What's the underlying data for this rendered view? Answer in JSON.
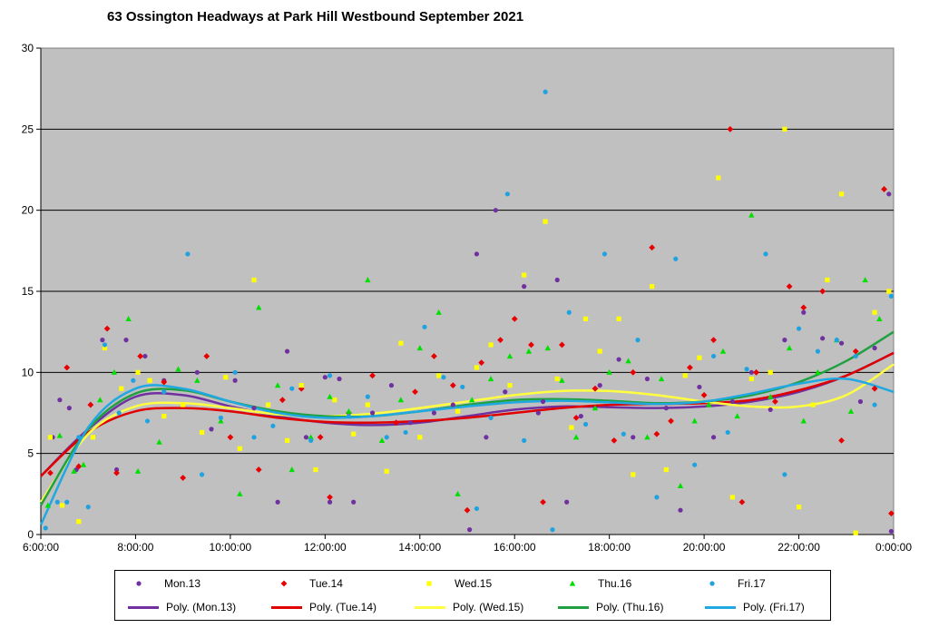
{
  "chart_data": {
    "type": "scatter",
    "title": "63 Ossington Headways at Park Hill Westbound September 2021",
    "xlabel": "",
    "ylabel": "",
    "x_ticks": [
      "6:00:00",
      "8:00:00",
      "10:00:00",
      "12:00:00",
      "14:00:00",
      "16:00:00",
      "18:00:00",
      "20:00:00",
      "22:00:00",
      "0:00:00"
    ],
    "y_ticks": [
      "0",
      "5",
      "10",
      "15",
      "20",
      "25",
      "30"
    ],
    "xlim": [
      6,
      24
    ],
    "ylim": [
      0,
      30
    ],
    "grid": "horizontal",
    "legend_position": "bottom",
    "plot_background": "#c0c0c0",
    "series": [
      {
        "name": "Mon.13",
        "color": "#7030a0",
        "marker": "circle",
        "x": [
          6.25,
          6.4,
          6.6,
          6.75,
          7.3,
          7.6,
          7.8,
          8.2,
          8.6,
          9.3,
          9.6,
          10.1,
          10.5,
          11.0,
          11.2,
          11.6,
          12.0,
          12.1,
          12.3,
          12.6,
          13.0,
          13.4,
          13.8,
          14.3,
          14.7,
          15.05,
          15.2,
          15.4,
          15.6,
          15.8,
          16.2,
          16.5,
          16.6,
          16.9,
          17.1,
          17.4,
          17.8,
          18.2,
          18.5,
          18.8,
          19.2,
          19.5,
          19.9,
          20.2,
          20.6,
          21.0,
          21.4,
          21.7,
          22.1,
          22.5,
          22.9,
          23.3,
          23.6,
          23.9,
          23.95
        ],
        "y": [
          6.0,
          8.3,
          7.8,
          4.0,
          12.0,
          4.0,
          12.0,
          11.0,
          9.5,
          10.0,
          6.5,
          9.5,
          7.8,
          2.0,
          11.3,
          6.0,
          9.7,
          2.0,
          9.6,
          2.0,
          7.5,
          9.2,
          6.9,
          7.5,
          8.0,
          0.3,
          17.3,
          6.0,
          20.0,
          8.8,
          15.3,
          7.5,
          8.2,
          15.7,
          2.0,
          7.3,
          9.2,
          10.8,
          6.0,
          9.6,
          7.8,
          1.5,
          9.1,
          6.0,
          8.2,
          10.0,
          7.7,
          12.0,
          13.7,
          12.1,
          11.8,
          8.2,
          11.5,
          21.0,
          0.2
        ]
      },
      {
        "name": "Tue.14",
        "color": "#e80000",
        "marker": "diamond",
        "x": [
          6.2,
          6.55,
          6.8,
          7.05,
          7.4,
          7.6,
          8.1,
          8.6,
          9.0,
          9.5,
          10.0,
          10.6,
          11.1,
          11.5,
          11.9,
          12.1,
          12.5,
          13.0,
          13.5,
          13.9,
          14.3,
          14.7,
          15.0,
          15.3,
          15.7,
          16.0,
          16.35,
          16.6,
          17.0,
          17.3,
          17.7,
          18.1,
          18.5,
          18.9,
          19.0,
          19.3,
          19.7,
          20.0,
          20.2,
          20.55,
          20.8,
          21.1,
          21.5,
          21.8,
          22.1,
          22.5,
          22.9,
          23.2,
          23.6,
          23.8,
          23.95
        ],
        "y": [
          3.8,
          10.3,
          4.2,
          8.0,
          12.7,
          3.8,
          11.0,
          9.4,
          3.5,
          11.0,
          6.0,
          4.0,
          8.3,
          9.0,
          6.0,
          2.3,
          7.5,
          9.8,
          6.9,
          8.8,
          11.0,
          9.2,
          1.5,
          10.6,
          12.0,
          13.3,
          11.7,
          2.0,
          11.7,
          7.2,
          9.0,
          5.8,
          10.0,
          17.7,
          6.2,
          7.0,
          10.3,
          8.6,
          12.0,
          25.0,
          2.0,
          10.0,
          8.2,
          15.3,
          14.0,
          15.0,
          5.8,
          11.3,
          9.0,
          21.3,
          1.3
        ]
      },
      {
        "name": "Wed.15",
        "color": "#ffff00",
        "marker": "square",
        "x": [
          6.2,
          6.45,
          6.8,
          7.1,
          7.35,
          7.7,
          8.05,
          8.3,
          8.6,
          9.0,
          9.4,
          9.9,
          10.2,
          10.5,
          10.8,
          11.2,
          11.5,
          11.8,
          12.2,
          12.6,
          12.9,
          13.3,
          13.6,
          14.0,
          14.4,
          14.8,
          15.2,
          15.5,
          15.9,
          16.2,
          16.65,
          16.9,
          17.2,
          17.5,
          17.8,
          18.2,
          18.5,
          18.9,
          19.2,
          19.6,
          19.9,
          20.3,
          20.6,
          21.0,
          21.4,
          21.7,
          22.0,
          22.3,
          22.6,
          22.9,
          23.2,
          23.6,
          23.9
        ],
        "y": [
          6.0,
          1.8,
          0.8,
          6.0,
          11.5,
          9.0,
          10.0,
          9.5,
          7.3,
          8.0,
          6.3,
          9.7,
          5.3,
          15.7,
          8.0,
          5.8,
          9.2,
          4.0,
          8.3,
          6.2,
          8.0,
          3.9,
          11.8,
          6.0,
          9.8,
          7.6,
          10.3,
          11.7,
          9.2,
          16.0,
          19.3,
          9.6,
          6.6,
          13.3,
          11.3,
          13.3,
          3.7,
          15.3,
          4.0,
          9.8,
          10.9,
          22.0,
          2.3,
          9.6,
          10.0,
          25.0,
          1.7,
          8.0,
          15.7,
          21.0,
          0.1,
          13.7,
          15.0
        ]
      },
      {
        "name": "Thu.16",
        "color": "#00e000",
        "marker": "triangle",
        "x": [
          6.15,
          6.4,
          6.7,
          6.9,
          7.25,
          7.55,
          7.85,
          8.05,
          8.5,
          8.9,
          9.3,
          9.8,
          10.2,
          10.6,
          11.0,
          11.3,
          11.7,
          12.1,
          12.5,
          12.9,
          13.2,
          13.6,
          14.0,
          14.4,
          14.8,
          15.1,
          15.5,
          15.9,
          16.3,
          16.7,
          17.0,
          17.3,
          17.7,
          18.0,
          18.4,
          18.8,
          19.1,
          19.5,
          19.8,
          20.1,
          20.4,
          20.7,
          21.0,
          21.4,
          21.8,
          22.1,
          22.4,
          22.8,
          23.1,
          23.4,
          23.7
        ],
        "y": [
          1.8,
          6.1,
          3.9,
          4.3,
          8.3,
          10.0,
          13.3,
          3.9,
          5.7,
          10.2,
          9.5,
          7.0,
          2.5,
          14.0,
          9.2,
          4.0,
          6.0,
          8.5,
          7.6,
          15.7,
          5.8,
          8.3,
          11.5,
          13.7,
          2.5,
          8.3,
          9.6,
          11.0,
          11.3,
          11.5,
          9.5,
          6.0,
          7.8,
          10.0,
          10.7,
          6.0,
          9.6,
          3.0,
          7.0,
          8.0,
          11.3,
          7.3,
          19.7,
          8.5,
          11.5,
          7.0,
          10.0,
          12.0,
          7.6,
          15.7,
          13.3
        ]
      },
      {
        "name": "Fri.17",
        "color": "#1fa3e0",
        "marker": "circle",
        "x": [
          6.1,
          6.35,
          6.55,
          6.8,
          7.0,
          7.35,
          7.65,
          7.95,
          8.25,
          8.6,
          9.1,
          9.4,
          9.8,
          10.1,
          10.5,
          10.9,
          11.3,
          11.7,
          12.1,
          12.5,
          12.9,
          13.3,
          13.7,
          14.1,
          14.5,
          14.9,
          15.2,
          15.5,
          15.85,
          16.2,
          16.65,
          16.8,
          17.15,
          17.5,
          17.9,
          18.3,
          18.6,
          19.0,
          19.4,
          19.8,
          20.2,
          20.5,
          20.9,
          21.3,
          21.7,
          22.0,
          22.4,
          22.8,
          23.2,
          23.6,
          23.95
        ],
        "y": [
          0.4,
          2.0,
          2.0,
          6.0,
          1.7,
          11.7,
          7.5,
          9.5,
          7.0,
          8.8,
          17.3,
          3.7,
          7.2,
          10.0,
          6.0,
          6.7,
          9.0,
          5.8,
          9.8,
          7.3,
          8.5,
          6.0,
          6.3,
          12.8,
          9.7,
          9.1,
          1.6,
          7.2,
          21.0,
          5.8,
          27.3,
          0.3,
          13.7,
          6.8,
          17.3,
          6.2,
          12.0,
          2.3,
          17.0,
          4.3,
          11.0,
          6.3,
          10.2,
          17.3,
          3.7,
          12.7,
          11.3,
          12.0,
          11.0,
          8.0,
          14.7
        ]
      }
    ],
    "trendlines": [
      {
        "name": "Poly. (Mon.13)",
        "color": "#7030a0",
        "x": [
          6,
          7,
          8,
          9,
          10,
          11,
          12,
          13,
          14,
          15,
          16,
          17,
          18,
          19,
          20,
          21,
          22,
          23,
          24
        ],
        "y": [
          3.6,
          6.5,
          8.5,
          8.6,
          7.9,
          7.3,
          6.9,
          6.75,
          6.9,
          7.3,
          7.7,
          7.9,
          7.85,
          7.8,
          7.9,
          8.2,
          8.8,
          9.8,
          11.2
        ]
      },
      {
        "name": "Poly. (Tue.14)",
        "color": "#e00000",
        "x": [
          6,
          7,
          8,
          9,
          10,
          11,
          12,
          13,
          14,
          15,
          16,
          17,
          18,
          19,
          20,
          21,
          22,
          23,
          24
        ],
        "y": [
          3.6,
          6.3,
          7.6,
          7.8,
          7.6,
          7.2,
          6.95,
          6.9,
          7.0,
          7.2,
          7.5,
          7.8,
          8.0,
          8.05,
          8.1,
          8.3,
          8.9,
          9.8,
          11.2
        ]
      },
      {
        "name": "Poly. (Wed.15)",
        "color": "#ffff40",
        "x": [
          6,
          7,
          8,
          9,
          10,
          11,
          12,
          13,
          14,
          15,
          16,
          17,
          18,
          19,
          20,
          21,
          22,
          23,
          24
        ],
        "y": [
          2.0,
          6.2,
          7.9,
          8.1,
          7.8,
          7.4,
          7.3,
          7.45,
          7.8,
          8.2,
          8.6,
          8.85,
          8.85,
          8.6,
          8.2,
          7.9,
          7.9,
          8.6,
          10.5
        ]
      },
      {
        "name": "Poly. (Thu.16)",
        "color": "#20a040",
        "x": [
          6,
          7,
          8,
          9,
          10,
          11,
          12,
          13,
          14,
          15,
          16,
          17,
          18,
          19,
          20,
          21,
          22,
          23,
          24
        ],
        "y": [
          1.8,
          6.5,
          8.7,
          8.9,
          8.2,
          7.6,
          7.3,
          7.3,
          7.6,
          8.0,
          8.3,
          8.35,
          8.25,
          8.1,
          8.2,
          8.6,
          9.4,
          10.7,
          12.5
        ]
      },
      {
        "name": "Poly. (Fri.17)",
        "color": "#20a8e0",
        "x": [
          6,
          7,
          8,
          9,
          10,
          11,
          12,
          13,
          14,
          15,
          16,
          17,
          18,
          19,
          20,
          21,
          22,
          23,
          24
        ],
        "y": [
          0.6,
          6.6,
          9.0,
          9.0,
          8.2,
          7.5,
          7.2,
          7.3,
          7.6,
          7.9,
          8.15,
          8.25,
          8.15,
          8.05,
          8.2,
          8.7,
          9.3,
          9.6,
          8.8
        ]
      }
    ]
  }
}
